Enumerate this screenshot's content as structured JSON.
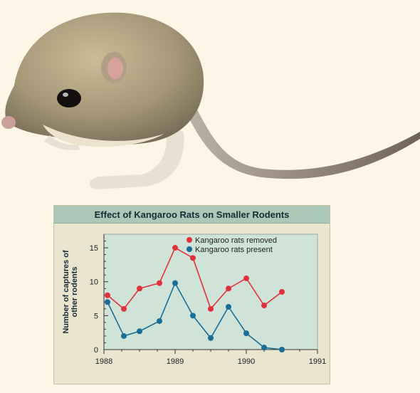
{
  "chart_data": {
    "type": "line",
    "title": "Effect of Kangaroo Rats on Smaller Rodents",
    "xlabel": "",
    "ylabel": "Number of captures of other rodents",
    "ylabel_lines": [
      "Number of captures of",
      "other rodents"
    ],
    "xlim": [
      1988,
      1991
    ],
    "ylim": [
      0,
      17
    ],
    "xticks": [
      1988,
      1989,
      1990,
      1991
    ],
    "xtick_labels": [
      "1988",
      "1989",
      "1990",
      "1991"
    ],
    "yticks": [
      0,
      5,
      10,
      15
    ],
    "ytick_labels": [
      "0",
      "5",
      "10",
      "15"
    ],
    "grid": false,
    "legend_position": "top-right",
    "series": [
      {
        "name": "Kangaroo rats removed",
        "color": "#e0323c",
        "x": [
          1988.05,
          1988.28,
          1988.5,
          1988.78,
          1989.0,
          1989.25,
          1989.5,
          1989.75,
          1990.0,
          1990.25,
          1990.5
        ],
        "y": [
          8,
          6,
          9,
          9.8,
          15,
          13.5,
          6,
          9,
          10.5,
          6.5,
          8.5
        ]
      },
      {
        "name": "Kangaroo rats present",
        "color": "#1a6d94",
        "x": [
          1988.05,
          1988.28,
          1988.5,
          1988.78,
          1989.0,
          1989.25,
          1989.5,
          1989.75,
          1990.0,
          1990.25,
          1990.5
        ],
        "y": [
          7,
          2,
          2.7,
          4.2,
          9.8,
          5,
          1.7,
          6.3,
          2.4,
          0.3,
          0
        ]
      }
    ]
  },
  "illustration": {
    "subject": "kangaroo rat",
    "colors": {
      "fur_back": "#8f8367",
      "fur_light": "#c9bb97",
      "belly": "#ece2cc",
      "ear_inner": "#d6a39c",
      "eye": "#120f0e",
      "tail": "#a2958a"
    }
  }
}
